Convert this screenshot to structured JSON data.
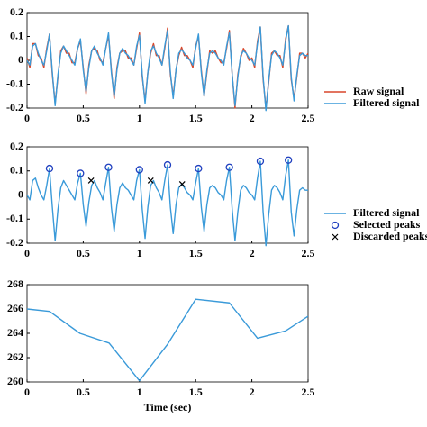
{
  "chart_data": [
    {
      "type": "line",
      "x": [
        0,
        0.025,
        0.05,
        0.075,
        0.1,
        0.125,
        0.15,
        0.175,
        0.2,
        0.225,
        0.25,
        0.275,
        0.3,
        0.325,
        0.35,
        0.375,
        0.4,
        0.425,
        0.45,
        0.475,
        0.5,
        0.525,
        0.55,
        0.575,
        0.6,
        0.625,
        0.65,
        0.675,
        0.7,
        0.725,
        0.75,
        0.775,
        0.8,
        0.825,
        0.85,
        0.875,
        0.9,
        0.925,
        0.95,
        0.975,
        1,
        1.025,
        1.05,
        1.075,
        1.1,
        1.125,
        1.15,
        1.175,
        1.2,
        1.225,
        1.25,
        1.275,
        1.3,
        1.325,
        1.35,
        1.375,
        1.4,
        1.425,
        1.45,
        1.475,
        1.5,
        1.525,
        1.55,
        1.575,
        1.6,
        1.625,
        1.65,
        1.675,
        1.7,
        1.725,
        1.75,
        1.775,
        1.8,
        1.825,
        1.85,
        1.875,
        1.9,
        1.925,
        1.95,
        1.975,
        2,
        2.025,
        2.05,
        2.075,
        2.1,
        2.125,
        2.15,
        2.175,
        2.2,
        2.225,
        2.25,
        2.275,
        2.3,
        2.325,
        2.35,
        2.375,
        2.4,
        2.425,
        2.45,
        2.475,
        2.5
      ],
      "series": [
        {
          "name": "Raw signal",
          "color": "#d9472b",
          "values": [
            0.01,
            -0.03,
            0.07,
            0.07,
            0.02,
            0.01,
            -0.03,
            0.05,
            0.11,
            -0.06,
            -0.18,
            -0.07,
            0.04,
            0.06,
            0.03,
            0.03,
            -0.01,
            -0.01,
            0.05,
            0.08,
            -0.03,
            -0.14,
            -0.02,
            0.04,
            0.05,
            0.04,
            0.0,
            -0.01,
            0.05,
            0.105,
            -0.04,
            -0.16,
            -0.03,
            0.03,
            0.04,
            0.04,
            0.01,
            0.01,
            -0.02,
            0.05,
            0.115,
            -0.07,
            -0.17,
            -0.05,
            0.03,
            0.07,
            0.02,
            0.02,
            -0.02,
            0.05,
            0.135,
            -0.06,
            -0.15,
            -0.04,
            0.02,
            0.055,
            0.02,
            0.02,
            0.0,
            -0.03,
            0.06,
            0.1,
            -0.04,
            -0.15,
            -0.05,
            0.04,
            0.03,
            0.04,
            0.01,
            -0.01,
            -0.01,
            0.05,
            0.125,
            -0.06,
            -0.2,
            -0.06,
            0.01,
            0.05,
            0.03,
            0.0,
            0.01,
            -0.03,
            0.08,
            0.14,
            -0.08,
            -0.2,
            -0.09,
            0.03,
            0.04,
            0.02,
            0.02,
            -0.03,
            0.09,
            0.145,
            -0.08,
            -0.16,
            -0.07,
            0.03,
            0.03,
            0.01,
            0.03
          ]
        },
        {
          "name": "Filtered signal",
          "color": "#3a9ad9",
          "values": [
            0.0,
            -0.02,
            0.06,
            0.07,
            0.03,
            0.0,
            -0.02,
            0.04,
            0.11,
            -0.05,
            -0.19,
            -0.06,
            0.03,
            0.06,
            0.04,
            0.02,
            0.0,
            -0.02,
            0.05,
            0.09,
            -0.04,
            -0.13,
            -0.03,
            0.04,
            0.06,
            0.03,
            0.01,
            -0.02,
            0.05,
            0.115,
            -0.05,
            -0.15,
            -0.04,
            0.03,
            0.05,
            0.03,
            0.02,
            0.0,
            -0.02,
            0.06,
            0.105,
            -0.06,
            -0.18,
            -0.05,
            0.04,
            0.06,
            0.03,
            0.01,
            -0.02,
            0.06,
            0.125,
            -0.05,
            -0.16,
            -0.04,
            0.03,
            0.045,
            0.03,
            0.01,
            0.0,
            -0.02,
            0.05,
            0.11,
            -0.05,
            -0.15,
            -0.04,
            0.03,
            0.04,
            0.03,
            0.01,
            0.0,
            -0.02,
            0.06,
            0.115,
            -0.06,
            -0.19,
            -0.07,
            0.02,
            0.04,
            0.03,
            0.01,
            0.0,
            -0.02,
            0.07,
            0.14,
            -0.07,
            -0.21,
            -0.08,
            0.02,
            0.04,
            0.03,
            0.01,
            -0.02,
            0.08,
            0.145,
            -0.07,
            -0.17,
            -0.06,
            0.02,
            0.03,
            0.02,
            0.02
          ]
        }
      ],
      "xlim": [
        0,
        2.5
      ],
      "xticks": [
        0,
        0.5,
        1,
        1.5,
        2,
        2.5
      ],
      "ylim": [
        -0.2,
        0.2
      ],
      "yticks": [
        -0.2,
        -0.1,
        0,
        0.1,
        0.2
      ]
    },
    {
      "type": "line",
      "x": [
        0,
        0.025,
        0.05,
        0.075,
        0.1,
        0.125,
        0.15,
        0.175,
        0.2,
        0.225,
        0.25,
        0.275,
        0.3,
        0.325,
        0.35,
        0.375,
        0.4,
        0.425,
        0.45,
        0.475,
        0.5,
        0.525,
        0.55,
        0.575,
        0.6,
        0.625,
        0.65,
        0.675,
        0.7,
        0.725,
        0.75,
        0.775,
        0.8,
        0.825,
        0.85,
        0.875,
        0.9,
        0.925,
        0.95,
        0.975,
        1,
        1.025,
        1.05,
        1.075,
        1.1,
        1.125,
        1.15,
        1.175,
        1.2,
        1.225,
        1.25,
        1.275,
        1.3,
        1.325,
        1.35,
        1.375,
        1.4,
        1.425,
        1.45,
        1.475,
        1.5,
        1.525,
        1.55,
        1.575,
        1.6,
        1.625,
        1.65,
        1.675,
        1.7,
        1.725,
        1.75,
        1.775,
        1.8,
        1.825,
        1.85,
        1.875,
        1.9,
        1.925,
        1.95,
        1.975,
        2,
        2.025,
        2.05,
        2.075,
        2.1,
        2.125,
        2.15,
        2.175,
        2.2,
        2.225,
        2.25,
        2.275,
        2.3,
        2.325,
        2.35,
        2.375,
        2.4,
        2.425,
        2.45,
        2.475,
        2.5
      ],
      "series": [
        {
          "name": "Filtered signal",
          "color": "#3a9ad9",
          "values": [
            0.0,
            -0.02,
            0.06,
            0.07,
            0.03,
            0.0,
            -0.02,
            0.04,
            0.11,
            -0.05,
            -0.19,
            -0.06,
            0.03,
            0.06,
            0.04,
            0.02,
            0.0,
            -0.02,
            0.05,
            0.09,
            -0.04,
            -0.13,
            -0.03,
            0.04,
            0.06,
            0.03,
            0.01,
            -0.02,
            0.05,
            0.115,
            -0.05,
            -0.15,
            -0.04,
            0.03,
            0.05,
            0.03,
            0.02,
            0.0,
            -0.02,
            0.06,
            0.105,
            -0.06,
            -0.18,
            -0.05,
            0.04,
            0.06,
            0.03,
            0.01,
            -0.02,
            0.06,
            0.125,
            -0.05,
            -0.16,
            -0.04,
            0.03,
            0.045,
            0.03,
            0.01,
            0.0,
            -0.02,
            0.05,
            0.11,
            -0.05,
            -0.15,
            -0.04,
            0.03,
            0.04,
            0.03,
            0.01,
            0.0,
            -0.02,
            0.06,
            0.115,
            -0.06,
            -0.19,
            -0.07,
            0.02,
            0.04,
            0.03,
            0.01,
            0.0,
            -0.02,
            0.07,
            0.14,
            -0.07,
            -0.21,
            -0.08,
            0.02,
            0.04,
            0.03,
            0.01,
            -0.02,
            0.08,
            0.145,
            -0.07,
            -0.17,
            -0.06,
            0.02,
            0.03,
            0.02,
            0.02
          ]
        },
        {
          "name": "Selected peaks",
          "color": "#1f3fbf",
          "marker": "o",
          "x": [
            0.2,
            0.475,
            0.725,
            1,
            1.25,
            1.525,
            1.8,
            2.075,
            2.325
          ],
          "values": [
            0.11,
            0.09,
            0.115,
            0.105,
            0.125,
            0.11,
            0.115,
            0.14,
            0.145
          ]
        },
        {
          "name": "Discarded peaks",
          "color": "#000000",
          "marker": "x",
          "x": [
            0.57,
            1.1,
            1.38
          ],
          "values": [
            0.06,
            0.06,
            0.045
          ]
        }
      ],
      "xlim": [
        0,
        2.5
      ],
      "xticks": [
        0,
        0.5,
        1,
        1.5,
        2,
        2.5
      ],
      "ylim": [
        -0.2,
        0.2
      ],
      "yticks": [
        -0.2,
        -0.1,
        0,
        0.1,
        0.2
      ]
    },
    {
      "type": "line",
      "xlabel": "Time (sec)",
      "x": [
        0,
        0.2,
        0.47,
        0.73,
        1.0,
        1.25,
        1.5,
        1.8,
        2.05,
        2.3,
        2.5
      ],
      "series": [
        {
          "color": "#3a9ad9",
          "values": [
            266,
            265.8,
            264,
            263.2,
            260.1,
            263.1,
            266.8,
            266.5,
            263.6,
            264.2,
            265.4
          ]
        }
      ],
      "xlim": [
        0,
        2.5
      ],
      "xticks": [
        0,
        0.5,
        1,
        1.5,
        2,
        2.5
      ],
      "ylim": [
        260,
        268
      ],
      "yticks": [
        260,
        262,
        264,
        266,
        268
      ]
    }
  ]
}
